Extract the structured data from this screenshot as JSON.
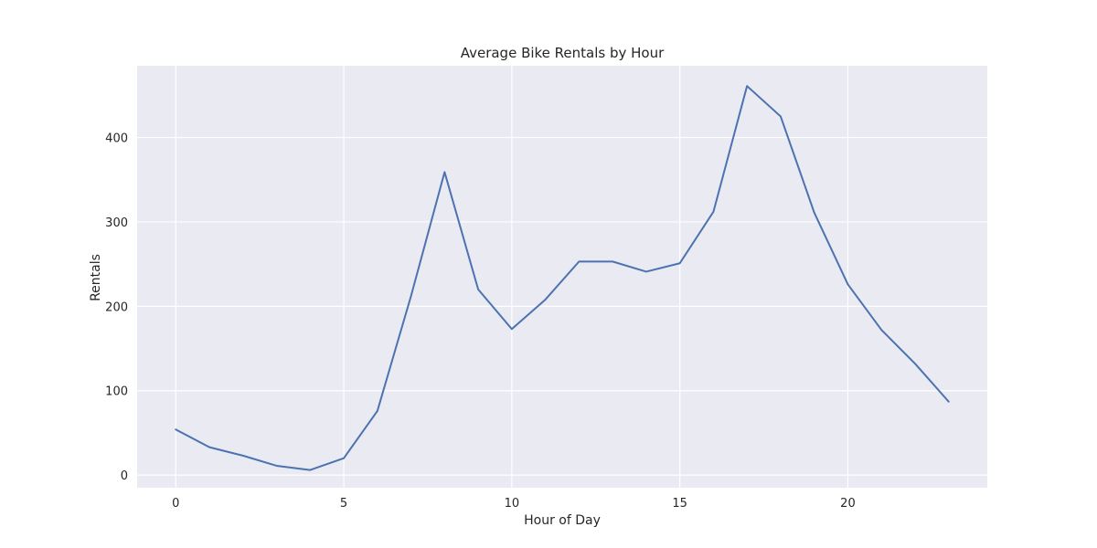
{
  "chart_data": {
    "type": "line",
    "title": "Average Bike Rentals by Hour",
    "xlabel": "Hour of Day",
    "ylabel": "Rentals",
    "xlim": [
      -1.15,
      24.15
    ],
    "ylim": [
      -15,
      485
    ],
    "xticks": [
      0,
      5,
      10,
      15,
      20
    ],
    "yticks": [
      0,
      100,
      200,
      300,
      400
    ],
    "grid": true,
    "legend": "none",
    "background": "#eaeaf2",
    "grid_color": "#ffffff",
    "line_color": "#4c72b0",
    "series": [
      {
        "x": [
          0,
          1,
          2,
          3,
          4,
          5,
          6,
          7,
          8,
          9,
          10,
          11,
          12,
          13,
          14,
          15,
          16,
          17,
          18,
          19,
          20,
          21,
          22,
          23
        ],
        "values": [
          54,
          33,
          23,
          11,
          6,
          20,
          76,
          212,
          359,
          220,
          173,
          208,
          253,
          253,
          241,
          251,
          312,
          461,
          425,
          311,
          226,
          172,
          132,
          87
        ]
      }
    ]
  }
}
